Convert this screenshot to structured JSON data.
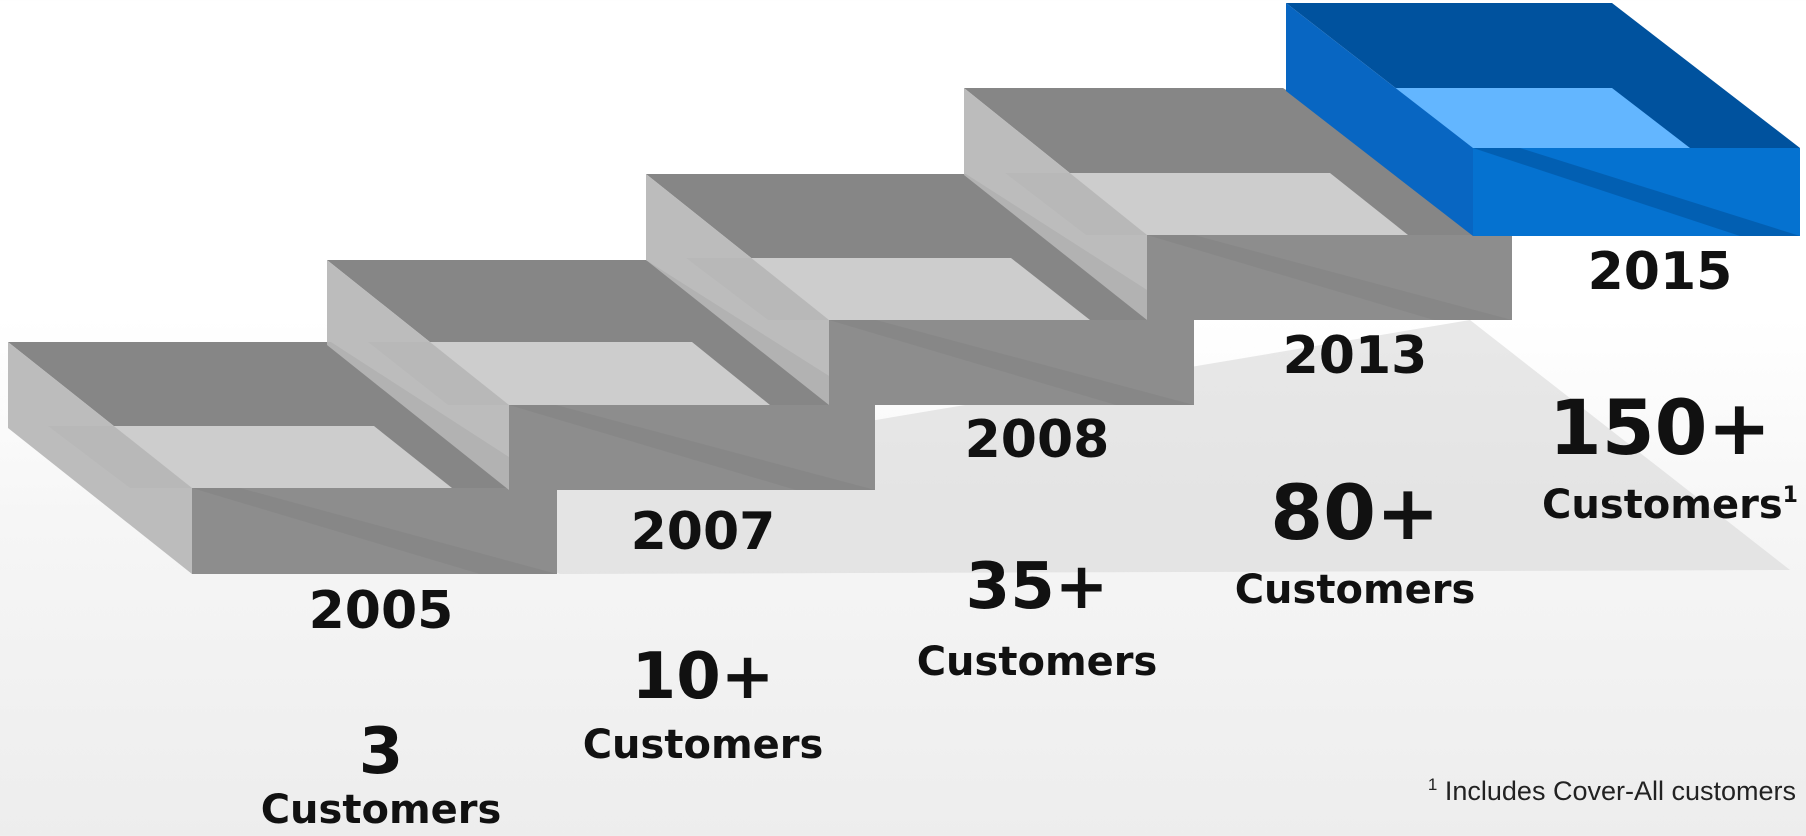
{
  "steps": [
    {
      "year": "2005",
      "count": "3",
      "customers_label": "Customers",
      "highlighted": false
    },
    {
      "year": "2007",
      "count": "10+",
      "customers_label": "Customers",
      "highlighted": false
    },
    {
      "year": "2008",
      "count": "35+",
      "customers_label": "Customers",
      "highlighted": false
    },
    {
      "year": "2013",
      "count": "80+",
      "customers_label": "Customers",
      "highlighted": false
    },
    {
      "year": "2015",
      "count": "150+",
      "customers_label": "Customers",
      "footnote_marker": "1",
      "highlighted": true
    }
  ],
  "footnote": {
    "marker": "1",
    "text": " Includes Cover-All customers"
  },
  "colors": {
    "step_top": "#868686",
    "step_front": "#8d8d8d",
    "step_side": "#b6b6b6",
    "step_inner": "#cdcdcd",
    "highlight_top": "#00529e",
    "highlight_front": "#0572d0",
    "highlight_side": "#0866c2",
    "highlight_inner": "#63b6ff"
  }
}
